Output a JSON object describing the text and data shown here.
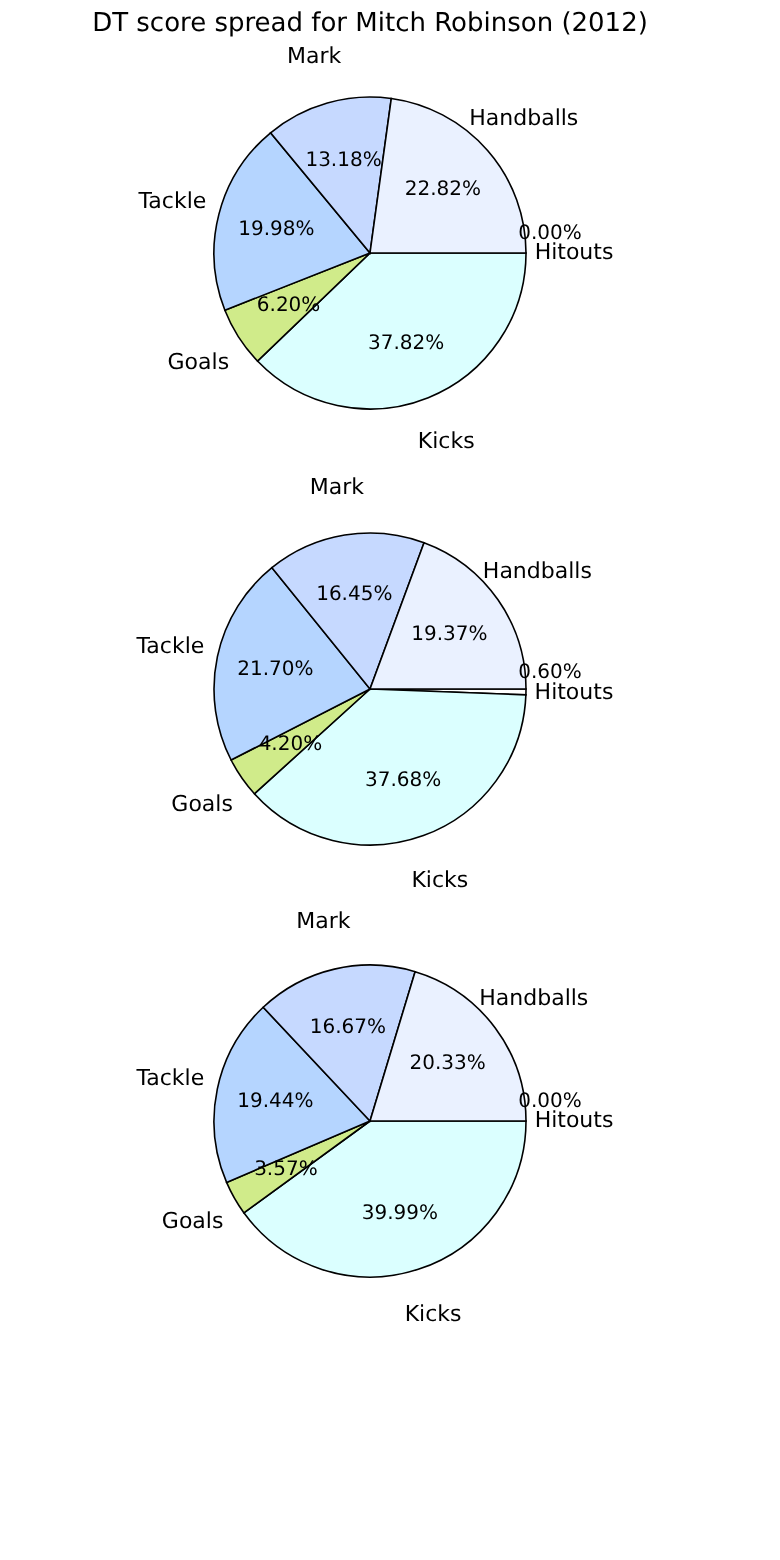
{
  "chart_data": [
    {
      "type": "pie",
      "title": "DT score spread for Mitch Robinson (2012)",
      "categories": [
        "Hitouts",
        "Kicks",
        "Goals",
        "Tackle",
        "Mark",
        "Handballs"
      ],
      "values": [
        0.0,
        37.82,
        6.2,
        19.98,
        13.18,
        22.82
      ],
      "colors": [
        "#ffffff",
        "#dbffff",
        "#d0eb8a",
        "#b5d5ff",
        "#c6d9ff",
        "#eaf1ff"
      ],
      "value_labels": [
        "0.00%",
        "37.82%",
        "6.20%",
        "19.98%",
        "13.18%",
        "22.82%"
      ]
    },
    {
      "type": "pie",
      "categories": [
        "Hitouts",
        "Kicks",
        "Goals",
        "Tackle",
        "Mark",
        "Handballs"
      ],
      "values": [
        0.6,
        37.68,
        4.2,
        21.7,
        16.45,
        19.37
      ],
      "colors": [
        "#ffffff",
        "#dbffff",
        "#d0eb8a",
        "#b5d5ff",
        "#c6d9ff",
        "#eaf1ff"
      ],
      "value_labels": [
        "0.60%",
        "37.68%",
        "4.20%",
        "21.70%",
        "16.45%",
        "19.37%"
      ]
    },
    {
      "type": "pie",
      "categories": [
        "Hitouts",
        "Kicks",
        "Goals",
        "Tackle",
        "Mark",
        "Handballs"
      ],
      "values": [
        0.0,
        39.99,
        3.57,
        19.44,
        16.67,
        20.33
      ],
      "colors": [
        "#ffffff",
        "#dbffff",
        "#d0eb8a",
        "#b5d5ff",
        "#c6d9ff",
        "#eaf1ff"
      ],
      "value_labels": [
        "0.00%",
        "39.99%",
        "3.57%",
        "19.44%",
        "16.67%",
        "20.33%"
      ]
    }
  ]
}
